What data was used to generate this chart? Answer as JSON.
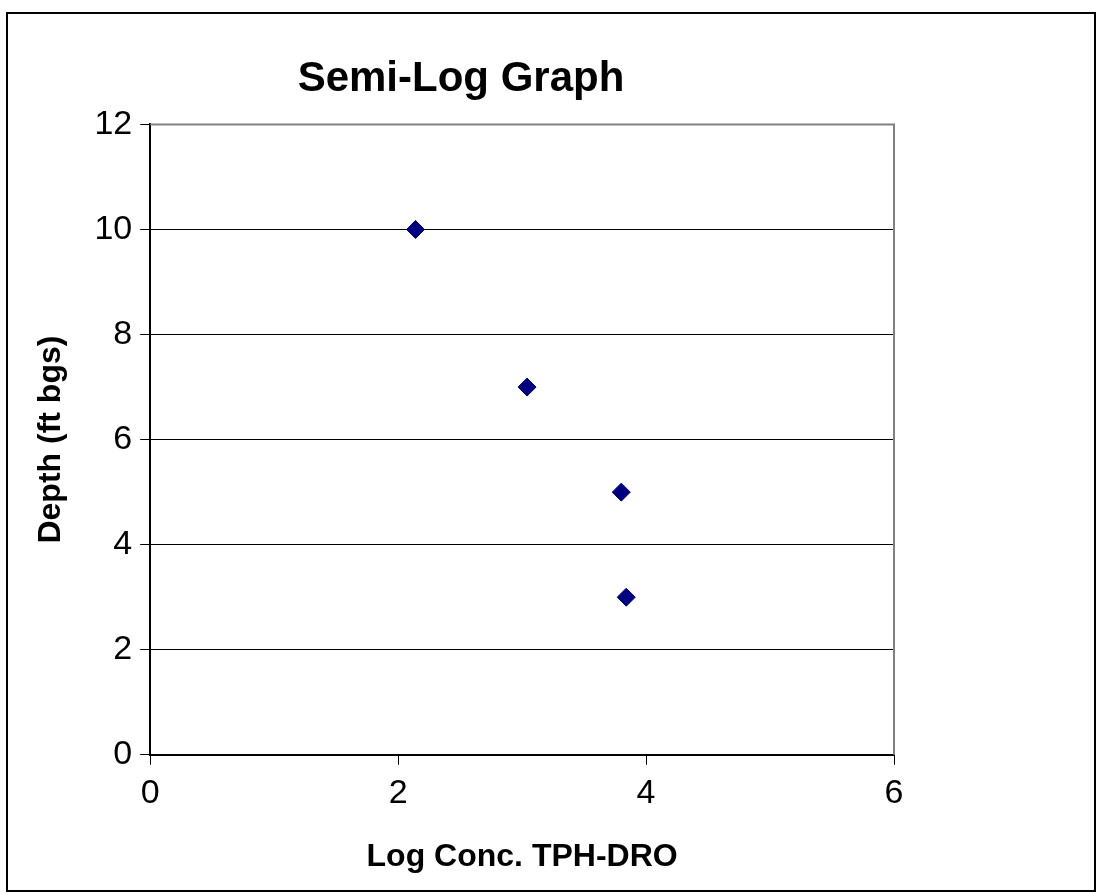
{
  "chart_data": {
    "type": "scatter",
    "title": "Semi-Log Graph",
    "xlabel": "Log Conc. TPH-DRO",
    "ylabel": "Depth (ft bgs)",
    "x": [
      2.14,
      3.04,
      3.8,
      3.84
    ],
    "series": [
      {
        "color": "#000080",
        "values": [
          10,
          7,
          5,
          3
        ]
      }
    ],
    "xlim": [
      0,
      6
    ],
    "xticks": [
      0,
      2,
      4,
      6
    ],
    "ylim": [
      0,
      12
    ],
    "yticks": [
      0,
      2,
      4,
      6,
      8,
      10,
      12
    ],
    "grid": "y",
    "marker": "diamond",
    "legend": false
  }
}
